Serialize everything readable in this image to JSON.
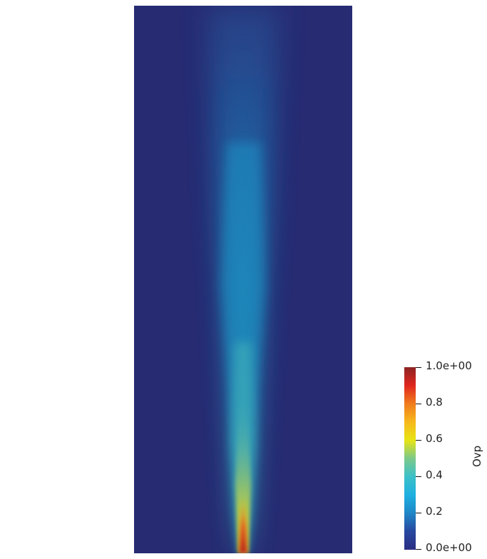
{
  "scalar_field": {
    "name": "Ovp",
    "range": [
      0.0,
      1.0
    ]
  },
  "colorbar": {
    "title": "Ovp",
    "ticks": [
      {
        "label": "1.0e+00",
        "value": 1.0
      },
      {
        "label": "0.8",
        "value": 0.8
      },
      {
        "label": "0.6",
        "value": 0.6
      },
      {
        "label": "0.4",
        "value": 0.4
      },
      {
        "label": "0.2",
        "value": 0.2
      },
      {
        "label": "0.0e+00",
        "value": 0.0
      }
    ],
    "colormap": {
      "name": "jet-like",
      "stops": [
        {
          "value": 0.0,
          "color": "#2b2e83"
        },
        {
          "value": 0.1,
          "color": "#27479f"
        },
        {
          "value": 0.2,
          "color": "#1f86c6"
        },
        {
          "value": 0.3,
          "color": "#1fb0e0"
        },
        {
          "value": 0.4,
          "color": "#3cc0c8"
        },
        {
          "value": 0.5,
          "color": "#7cc98a"
        },
        {
          "value": 0.6,
          "color": "#e7e414"
        },
        {
          "value": 0.7,
          "color": "#f6b81c"
        },
        {
          "value": 0.8,
          "color": "#f07c1c"
        },
        {
          "value": 0.9,
          "color": "#e0261e"
        },
        {
          "value": 1.0,
          "color": "#8c2424"
        }
      ]
    }
  },
  "colors": {
    "background": "#ffffff",
    "field_background": "#262b72",
    "plume_upper": "#244a8f",
    "plume_mid": "#1a8ec0",
    "plume_core": "#3aa9b8",
    "hot_core": "#e3df1a",
    "tip": "#c9261f"
  }
}
